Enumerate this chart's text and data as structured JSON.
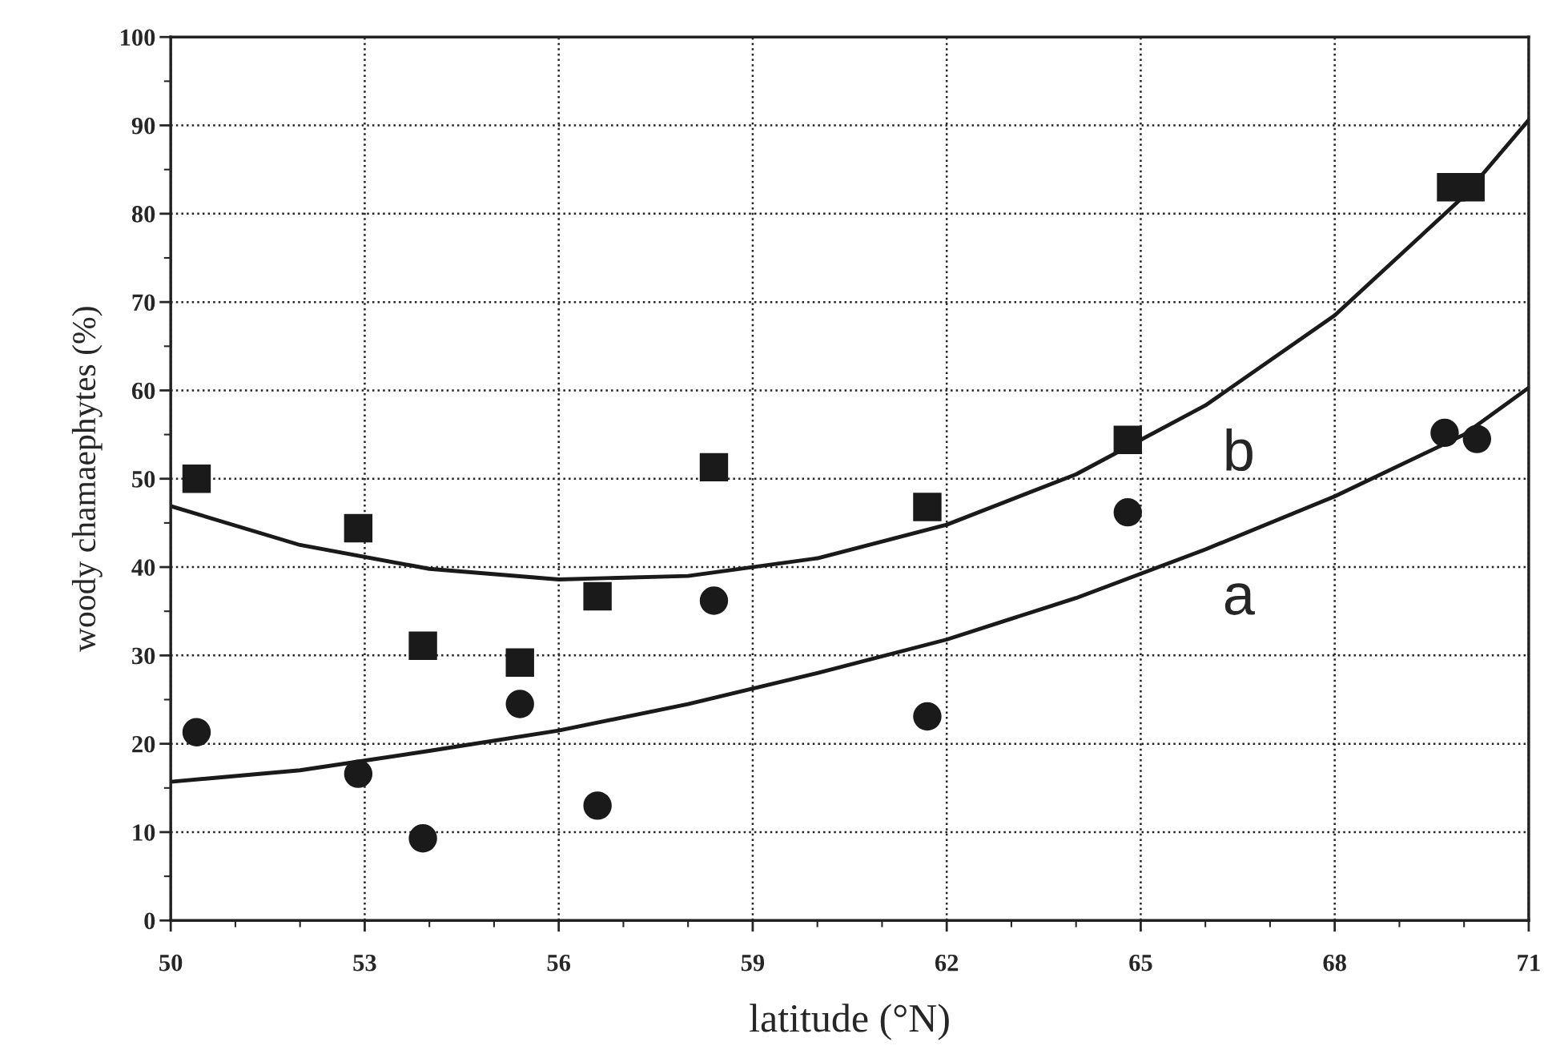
{
  "chart_data": {
    "type": "scatter",
    "xlabel": "latitude (°N)",
    "ylabel": "woody chamaephytes (%)",
    "xlim": [
      50,
      71
    ],
    "ylim": [
      0,
      100
    ],
    "xticks": [
      50,
      53,
      56,
      59,
      62,
      65,
      68,
      71,
      {
        "value": 51,
        "label": null
      },
      {
        "value": 52,
        "label": null
      },
      {
        "value": 54,
        "label": null
      },
      {
        "value": 55,
        "label": null
      },
      {
        "value": 57,
        "label": null
      },
      {
        "value": 58,
        "label": null
      },
      {
        "value": 60,
        "label": null
      },
      {
        "value": 61,
        "label": null
      },
      {
        "value": 63,
        "label": null
      },
      {
        "value": 64,
        "label": null
      },
      {
        "value": 66,
        "label": null
      },
      {
        "value": 67,
        "label": null
      },
      {
        "value": 69,
        "label": null
      },
      {
        "value": 70,
        "label": null
      }
    ],
    "yticks": [
      0,
      10,
      20,
      30,
      40,
      50,
      60,
      70,
      80,
      90,
      100,
      {
        "value": 5,
        "label": null
      },
      {
        "value": 15,
        "label": null
      },
      {
        "value": 25,
        "label": null
      },
      {
        "value": 35,
        "label": null
      },
      {
        "value": 45,
        "label": null
      },
      {
        "value": 55,
        "label": null
      },
      {
        "value": 65,
        "label": null
      },
      {
        "value": 75,
        "label": null
      },
      {
        "value": 85,
        "label": null
      },
      {
        "value": 95,
        "label": null
      }
    ],
    "grid": true,
    "series": [
      {
        "marker": "square",
        "color": "#1a1a1a",
        "x": [
          50.4,
          52.9,
          53.9,
          55.4,
          56.6,
          58.4,
          61.7,
          64.8,
          69.8,
          70.1
        ],
        "values": [
          50,
          44.4,
          31.1,
          29.2,
          36.7,
          51.3,
          46.8,
          54.4,
          83,
          83
        ]
      },
      {
        "marker": "circle",
        "color": "#1a1a1a",
        "x": [
          50.4,
          52.9,
          53.9,
          55.4,
          56.6,
          58.4,
          61.7,
          64.8,
          69.7,
          70.2
        ],
        "values": [
          21.3,
          16.6,
          9.3,
          24.5,
          13,
          36.2,
          23.1,
          46.2,
          55.2,
          54.5
        ]
      },
      {
        "type": "line",
        "name": "b",
        "color": "#1a1a1a",
        "x": [
          50,
          52,
          54,
          56,
          58,
          60,
          62,
          64,
          66,
          68,
          70,
          71
        ],
        "values": [
          46.9,
          42.5,
          39.8,
          38.6,
          39,
          41,
          44.8,
          50.5,
          58.3,
          68.5,
          82,
          90.6
        ]
      },
      {
        "type": "line",
        "name": "a",
        "color": "#1a1a1a",
        "x": [
          50,
          52,
          54,
          56,
          58,
          60,
          62,
          64,
          66,
          68,
          70,
          71
        ],
        "values": [
          15.7,
          17,
          19.2,
          21.5,
          24.5,
          28,
          31.8,
          36.5,
          42,
          48,
          55,
          60.3
        ]
      }
    ]
  }
}
